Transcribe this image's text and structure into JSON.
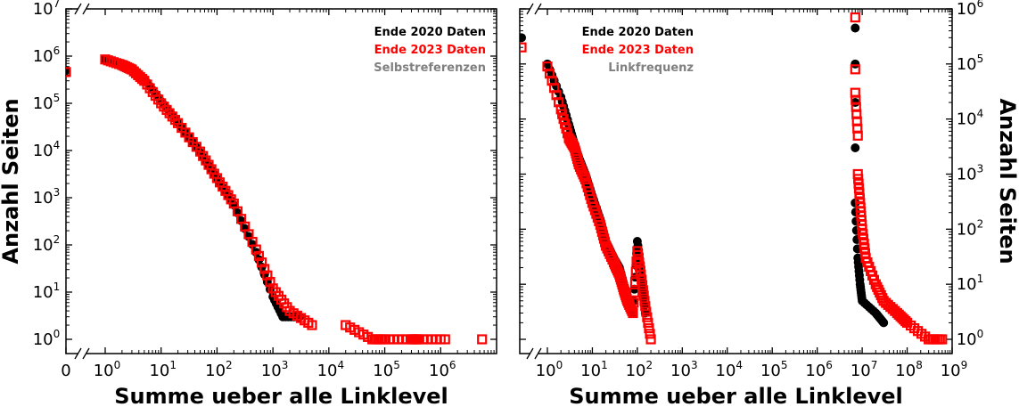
{
  "colors": {
    "series_2020": "#000000",
    "series_2023": "#ff0000",
    "selbst": "#808080"
  },
  "chart_data": [
    {
      "type": "scatter",
      "xlabel": "Summe ueber alle Linklevel",
      "ylabel": "Anzahl Seiten",
      "xscale": "log",
      "yscale": "log",
      "xlim": [
        0.5,
        10000000
      ],
      "ylim": [
        0.6,
        10000000
      ],
      "zero_on_x_axis": true,
      "x_tick_labels": [
        {
          "base": "0",
          "exp": ""
        },
        {
          "base": "10",
          "exp": "0"
        },
        {
          "base": "10",
          "exp": "1"
        },
        {
          "base": "10",
          "exp": "2"
        },
        {
          "base": "10",
          "exp": "3"
        },
        {
          "base": "10",
          "exp": "4"
        },
        {
          "base": "10",
          "exp": "5"
        },
        {
          "base": "10",
          "exp": "6"
        }
      ],
      "y_tick_labels": [
        {
          "base": "10",
          "exp": "0"
        },
        {
          "base": "10",
          "exp": "1"
        },
        {
          "base": "10",
          "exp": "2"
        },
        {
          "base": "10",
          "exp": "3"
        },
        {
          "base": "10",
          "exp": "4"
        },
        {
          "base": "10",
          "exp": "5"
        },
        {
          "base": "10",
          "exp": "6"
        },
        {
          "base": "10",
          "exp": "7"
        }
      ],
      "legend": [
        "Ende 2020 Daten",
        "Ende 2023 Daten",
        "Selbstreferenzen"
      ],
      "legend_position": "top-right",
      "series": [
        {
          "name": "Ende 2020 Daten",
          "marker": "filled-circle",
          "x0": 500000,
          "points": [
            [
              1,
              850000
            ],
            [
              2,
              700000
            ],
            [
              3,
              560000
            ],
            [
              5,
              330000
            ],
            [
              10,
              110000
            ],
            [
              20,
              40000
            ],
            [
              50,
              9000
            ],
            [
              100,
              2500
            ],
            [
              200,
              700
            ],
            [
              500,
              70
            ],
            [
              1000,
              8
            ],
            [
              1500,
              3
            ],
            [
              3000,
              3
            ]
          ]
        },
        {
          "name": "Ende 2023 Daten",
          "marker": "open-square",
          "x0": 460000,
          "points": [
            [
              1,
              850000
            ],
            [
              2,
              650000
            ],
            [
              3,
              520000
            ],
            [
              5,
              300000
            ],
            [
              10,
              100000
            ],
            [
              20,
              38000
            ],
            [
              50,
              9500
            ],
            [
              100,
              2600
            ],
            [
              200,
              750
            ],
            [
              500,
              80
            ],
            [
              1000,
              12
            ],
            [
              2000,
              4
            ],
            [
              5000,
              2
            ],
            [
              20000,
              2
            ],
            [
              60000,
              1
            ],
            [
              100000,
              1
            ],
            [
              300000,
              1
            ],
            [
              400000,
              1
            ],
            [
              1200000,
              1
            ],
            [
              5500000,
              1
            ]
          ]
        }
      ]
    },
    {
      "type": "scatter",
      "xlabel": "Summe ueber alle Linklevel",
      "ylabel": "Anzahl Seiten",
      "xscale": "log",
      "yscale": "log",
      "xlim": [
        0.5,
        1000000000
      ],
      "ylim": [
        0.6,
        1000000
      ],
      "zero_on_x_axis": false,
      "x_tick_labels": [
        {
          "base": "10",
          "exp": "0"
        },
        {
          "base": "10",
          "exp": "1"
        },
        {
          "base": "10",
          "exp": "2"
        },
        {
          "base": "10",
          "exp": "3"
        },
        {
          "base": "10",
          "exp": "4"
        },
        {
          "base": "10",
          "exp": "5"
        },
        {
          "base": "10",
          "exp": "6"
        },
        {
          "base": "10",
          "exp": "7"
        },
        {
          "base": "10",
          "exp": "8"
        },
        {
          "base": "10",
          "exp": "9"
        }
      ],
      "y_tick_labels": [
        {
          "base": "10",
          "exp": "0"
        },
        {
          "base": "10",
          "exp": "1"
        },
        {
          "base": "10",
          "exp": "2"
        },
        {
          "base": "10",
          "exp": "3"
        },
        {
          "base": "10",
          "exp": "4"
        },
        {
          "base": "10",
          "exp": "5"
        },
        {
          "base": "10",
          "exp": "6"
        }
      ],
      "legend": [
        "Ende 2020 Daten",
        "Ende 2023 Daten",
        "Linkfrequenz"
      ],
      "legend_position": "top-center",
      "series": [
        {
          "name": "Ende 2020 Daten",
          "marker": "filled-circle",
          "x0": 300000,
          "points": [
            [
              1,
              100000
            ],
            [
              2,
              25000
            ],
            [
              3,
              8000
            ],
            [
              4,
              3500
            ],
            [
              5,
              2000
            ],
            [
              7,
              1000
            ],
            [
              10,
              400
            ],
            [
              15,
              150
            ],
            [
              20,
              60
            ],
            [
              30,
              30
            ],
            [
              40,
              20
            ],
            [
              50,
              10
            ],
            [
              60,
              6
            ],
            [
              80,
              3
            ],
            [
              100,
              60
            ],
            [
              120,
              20
            ],
            [
              150,
              3
            ],
            [
              7000000,
              450000
            ],
            [
              7000000,
              100000
            ],
            [
              7000000,
              20000
            ],
            [
              7000000,
              3000
            ],
            [
              7000000,
              300
            ],
            [
              8000000,
              30
            ],
            [
              9000000,
              10
            ],
            [
              10000000,
              5
            ],
            [
              20000000,
              3
            ],
            [
              30000000,
              2
            ]
          ]
        },
        {
          "name": "Ende 2023 Daten",
          "marker": "open-square",
          "x0": 200000,
          "points": [
            [
              1,
              90000
            ],
            [
              2,
              15000
            ],
            [
              3,
              4500
            ],
            [
              4,
              3000
            ],
            [
              5,
              1500
            ],
            [
              7,
              800
            ],
            [
              10,
              300
            ],
            [
              15,
              120
            ],
            [
              20,
              50
            ],
            [
              30,
              25
            ],
            [
              40,
              15
            ],
            [
              50,
              8
            ],
            [
              60,
              5
            ],
            [
              80,
              3
            ],
            [
              100,
              40
            ],
            [
              120,
              15
            ],
            [
              150,
              4
            ],
            [
              200,
              1
            ],
            [
              7000000,
              700000
            ],
            [
              7000000,
              80000
            ],
            [
              7000000,
              30000
            ],
            [
              8000000,
              5000
            ],
            [
              8000000,
              1000
            ],
            [
              9000000,
              300
            ],
            [
              10000000,
              100
            ],
            [
              12000000,
              30
            ],
            [
              20000000,
              10
            ],
            [
              30000000,
              5
            ],
            [
              60000000,
              3
            ],
            [
              100000000,
              2
            ],
            [
              300000000,
              1
            ],
            [
              600000000,
              1
            ]
          ]
        }
      ]
    }
  ]
}
